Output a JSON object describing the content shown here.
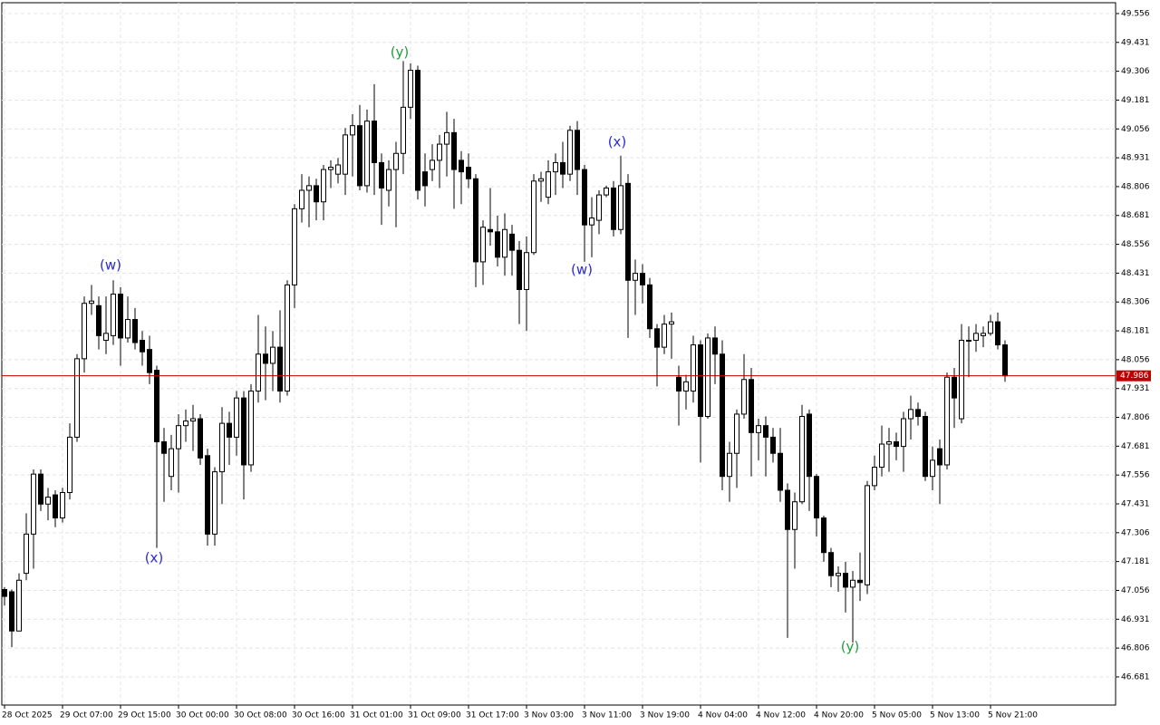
{
  "chart_data": {
    "type": "candlestick",
    "categories": [
      "28 Oct 2025",
      null,
      null,
      null,
      null,
      null,
      null,
      null,
      "29 Oct 07:00",
      null,
      null,
      null,
      null,
      null,
      null,
      null,
      "29 Oct 15:00",
      null,
      null,
      null,
      null,
      null,
      null,
      null,
      "30 Oct 00:00",
      null,
      null,
      null,
      null,
      null,
      null,
      null,
      "30 Oct 08:00",
      null,
      null,
      null,
      null,
      null,
      null,
      null,
      "30 Oct 16:00",
      null,
      null,
      null,
      null,
      null,
      null,
      null,
      "31 Oct 01:00",
      null,
      null,
      null,
      null,
      null,
      null,
      null,
      "31 Oct 09:00",
      null,
      null,
      null,
      null,
      null,
      null,
      null,
      "31 Oct 17:00",
      null,
      null,
      null,
      null,
      null,
      null,
      null,
      "3 Nov 03:00",
      null,
      null,
      null,
      null,
      null,
      null,
      null,
      "3 Nov 11:00",
      null,
      null,
      null,
      null,
      null,
      null,
      null,
      "3 Nov 19:00",
      null,
      null,
      null,
      null,
      null,
      null,
      null,
      "4 Nov 04:00",
      null,
      null,
      null,
      null,
      null,
      null,
      null,
      "4 Nov 12:00",
      null,
      null,
      null,
      null,
      null,
      null,
      null,
      "4 Nov 20:00",
      null,
      null,
      null,
      null,
      null,
      null,
      null,
      "5 Nov 05:00",
      null,
      null,
      null,
      null,
      null,
      null,
      null,
      "5 Nov 13:00",
      null,
      null,
      null,
      null,
      null,
      null,
      null,
      "5 Nov 21:00",
      null,
      null
    ],
    "open": [
      47.06,
      47.05,
      46.88,
      47.13,
      47.3,
      47.56,
      47.43,
      47.47,
      47.37,
      47.48,
      47.72,
      48.06,
      48.3,
      48.29,
      48.14,
      48.16,
      48.34,
      48.15,
      48.23,
      48.14,
      48.1,
      48.01,
      47.7,
      47.55,
      47.67,
      47.77,
      47.79,
      47.8,
      47.64,
      47.3,
      47.57,
      47.78,
      47.72,
      47.89,
      47.6,
      47.92,
      48.08,
      48.04,
      48.11,
      47.92,
      48.38,
      48.71,
      48.79,
      48.81,
      48.74,
      48.88,
      48.86,
      48.86,
      49.03,
      49.07,
      48.81,
      49.09,
      48.91,
      48.79,
      48.88,
      48.95,
      49.15,
      49.31,
      48.87,
      48.88,
      48.92,
      48.99,
      49.04,
      48.92,
      48.89,
      48.84,
      48.48,
      48.62,
      48.61,
      48.5,
      48.6,
      48.53,
      48.36,
      48.52,
      48.83,
      48.76,
      48.87,
      48.91,
      48.86,
      49.05,
      48.88,
      48.64,
      48.66,
      48.77,
      48.8,
      48.62,
      48.82,
      48.4,
      48.43,
      48.38,
      48.19,
      48.11,
      48.21,
      47.98,
      47.92,
      47.92,
      48.12,
      47.81,
      48.15,
      48.08,
      47.55,
      47.65,
      47.82,
      47.97,
      47.74,
      47.77,
      47.72,
      47.65,
      47.49,
      47.32,
      47.44,
      47.82,
      47.55,
      47.37,
      47.22,
      47.12,
      47.13,
      47.07,
      47.1,
      47.08,
      47.51,
      47.59,
      47.69,
      47.7,
      47.68,
      47.8,
      47.84,
      47.81,
      47.55,
      47.67,
      47.6,
      47.98,
      47.8,
      48.14,
      48.14,
      48.16,
      48.17,
      48.22,
      48.12
    ],
    "high": [
      47.07,
      47.06,
      47.13,
      47.39,
      47.58,
      47.58,
      47.5,
      47.49,
      47.5,
      47.78,
      48.08,
      48.33,
      48.38,
      48.33,
      48.33,
      48.4,
      48.37,
      48.33,
      48.28,
      48.18,
      48.16,
      48.03,
      47.76,
      47.73,
      47.82,
      47.84,
      47.86,
      47.82,
      47.67,
      47.59,
      47.85,
      47.83,
      47.92,
      47.92,
      47.95,
      48.25,
      48.2,
      48.18,
      48.27,
      48.4,
      48.73,
      48.86,
      48.85,
      48.84,
      48.9,
      48.92,
      48.93,
      49.06,
      49.12,
      49.16,
      49.14,
      49.25,
      48.95,
      48.92,
      49.0,
      49.35,
      49.34,
      49.33,
      48.95,
      48.99,
      49.03,
      49.13,
      49.1,
      48.96,
      48.95,
      48.86,
      48.66,
      48.8,
      48.68,
      48.69,
      48.64,
      48.57,
      48.59,
      48.86,
      48.87,
      48.92,
      48.95,
      49.0,
      49.07,
      49.09,
      48.9,
      48.76,
      48.79,
      48.81,
      48.83,
      48.94,
      48.86,
      48.49,
      48.47,
      48.41,
      48.21,
      48.25,
      48.26,
      48.03,
      47.99,
      48.16,
      48.14,
      48.17,
      48.2,
      48.14,
      47.7,
      47.84,
      48.08,
      48.02,
      47.8,
      47.81,
      47.76,
      47.76,
      47.52,
      47.48,
      47.86,
      47.84,
      47.56,
      47.38,
      47.24,
      47.16,
      47.18,
      47.14,
      47.22,
      47.53,
      47.64,
      47.77,
      47.76,
      47.74,
      47.83,
      47.9,
      47.87,
      47.83,
      47.68,
      47.71,
      48.0,
      48.02,
      48.21,
      48.2,
      48.21,
      48.2,
      48.25,
      48.26,
      48.14
    ],
    "low": [
      46.99,
      46.81,
      46.88,
      47.1,
      47.15,
      47.4,
      47.36,
      47.33,
      47.35,
      47.45,
      47.7,
      48.0,
      48.25,
      48.1,
      48.08,
      48.12,
      48.03,
      48.13,
      48.1,
      48.03,
      47.95,
      47.24,
      47.44,
      47.49,
      47.48,
      47.7,
      47.66,
      47.6,
      47.25,
      47.25,
      47.43,
      47.6,
      47.64,
      47.45,
      47.57,
      47.87,
      47.88,
      47.92,
      47.87,
      47.9,
      48.28,
      48.65,
      48.63,
      48.66,
      48.66,
      48.8,
      48.82,
      48.77,
      48.85,
      48.79,
      48.78,
      48.77,
      48.64,
      48.72,
      48.63,
      48.86,
      49.1,
      48.75,
      48.72,
      48.83,
      48.8,
      48.85,
      48.71,
      48.73,
      48.8,
      48.37,
      48.38,
      48.55,
      48.46,
      48.42,
      48.42,
      48.21,
      48.18,
      48.51,
      48.74,
      48.73,
      48.77,
      48.8,
      48.83,
      48.77,
      48.48,
      48.5,
      48.6,
      48.76,
      48.59,
      48.6,
      48.15,
      48.25,
      48.3,
      48.15,
      47.94,
      48.08,
      48.06,
      47.77,
      47.84,
      47.87,
      47.61,
      47.8,
      47.95,
      47.49,
      47.44,
      47.5,
      47.8,
      47.55,
      47.62,
      47.55,
      47.61,
      47.44,
      46.85,
      47.15,
      47.43,
      47.4,
      47.29,
      47.18,
      47.07,
      47.05,
      46.96,
      46.83,
      47.01,
      47.04,
      47.49,
      47.55,
      47.57,
      47.62,
      47.57,
      47.71,
      47.77,
      47.53,
      47.49,
      47.43,
      47.58,
      47.76,
      47.78,
      47.98,
      48.09,
      48.11,
      48.16,
      48.1,
      47.96
    ],
    "close": [
      47.03,
      46.88,
      47.1,
      47.3,
      47.56,
      47.43,
      47.46,
      47.37,
      47.48,
      47.72,
      48.06,
      48.3,
      48.31,
      48.16,
      48.17,
      48.34,
      48.15,
      48.23,
      48.13,
      48.09,
      48.0,
      47.7,
      47.65,
      47.67,
      47.77,
      47.79,
      47.8,
      47.63,
      47.3,
      47.57,
      47.78,
      47.72,
      47.89,
      47.6,
      47.92,
      48.08,
      48.04,
      48.11,
      47.92,
      48.38,
      48.71,
      48.79,
      48.81,
      48.74,
      48.88,
      48.89,
      48.9,
      49.03,
      49.07,
      48.81,
      49.09,
      48.91,
      48.8,
      48.88,
      48.95,
      49.15,
      49.31,
      48.79,
      48.81,
      48.92,
      48.99,
      49.04,
      48.88,
      48.87,
      48.84,
      48.48,
      48.63,
      48.61,
      48.5,
      48.62,
      48.53,
      48.36,
      48.52,
      48.83,
      48.84,
      48.87,
      48.91,
      48.86,
      49.05,
      48.88,
      48.64,
      48.67,
      48.77,
      48.8,
      48.62,
      48.81,
      48.4,
      48.43,
      48.38,
      48.19,
      48.11,
      48.21,
      48.22,
      47.92,
      47.96,
      48.12,
      47.81,
      48.15,
      48.08,
      47.55,
      47.65,
      47.82,
      47.97,
      47.74,
      47.77,
      47.72,
      47.65,
      47.49,
      47.32,
      47.44,
      47.81,
      47.55,
      47.37,
      47.22,
      47.12,
      47.13,
      47.07,
      47.1,
      47.09,
      47.51,
      47.59,
      47.69,
      47.7,
      47.68,
      47.8,
      47.84,
      47.81,
      47.55,
      47.62,
      47.6,
      47.98,
      47.89,
      48.14,
      48.14,
      48.17,
      48.17,
      48.22,
      48.12,
      47.986
    ],
    "up_color": "#ffffff",
    "down_color": "#000000",
    "ylim": [
      46.559,
      49.603
    ],
    "yticks": [
      49.556,
      49.431,
      49.306,
      49.181,
      49.056,
      48.931,
      48.806,
      48.681,
      48.556,
      48.431,
      48.306,
      48.181,
      48.056,
      47.931,
      47.806,
      47.681,
      47.556,
      47.431,
      47.306,
      47.181,
      47.056,
      46.931,
      46.806,
      46.681
    ],
    "grid": true,
    "last_price": 47.986,
    "last_price_color": "#c00000",
    "annotations": [
      {
        "text": "(w)",
        "color": "#2a2ad8"
      },
      {
        "text": "(x)",
        "color": "#2a2ad8"
      },
      {
        "text": "(y)",
        "color": "#1e9e3c"
      },
      {
        "text": "(w)",
        "color": "#2a2ad8"
      },
      {
        "text": "(x)",
        "color": "#2a2ad8"
      },
      {
        "text": "(y)",
        "color": "#1e9e3c"
      }
    ]
  }
}
